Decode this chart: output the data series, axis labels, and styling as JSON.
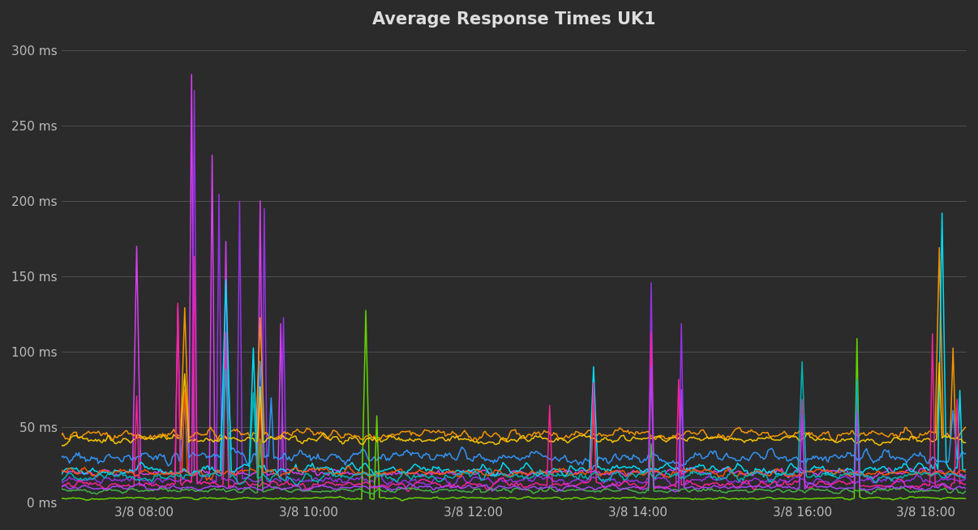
{
  "title": "Average Response Times UK1",
  "background_color": "#2b2b2b",
  "grid_color": "#555555",
  "text_color": "#bbbbbb",
  "title_color": "#dddddd",
  "ylim": [
    0,
    310
  ],
  "yticks": [
    0,
    50,
    100,
    150,
    200,
    250,
    300
  ],
  "ytick_labels": [
    "0 ms",
    "50 ms",
    "100 ms",
    "150 ms",
    "200 ms",
    "250 ms",
    "300 ms"
  ],
  "xtick_labels": [
    "3/8 08:00",
    "3/8 10:00",
    "3/8 12:00",
    "3/8 14:00",
    "3/8 16:00",
    "3/8 18:00"
  ],
  "num_points": 660,
  "xlim": [
    0,
    660
  ],
  "xtick_positions": [
    60,
    180,
    300,
    420,
    540,
    630
  ],
  "line_width": 1.1
}
